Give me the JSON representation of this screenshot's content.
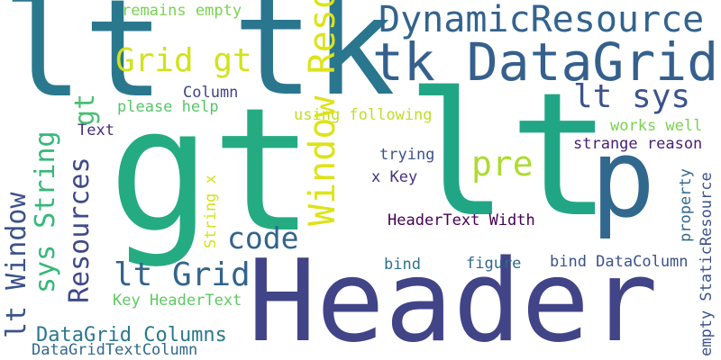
{
  "words": [
    {
      "text": "lt",
      "color": "#2a788e"
    },
    {
      "text": "tk",
      "color": "#2a768e"
    },
    {
      "text": "DynamicResource",
      "color": "#33638d"
    },
    {
      "text": "remains empty",
      "color": "#7ad151"
    },
    {
      "text": "tk DataGrid",
      "color": "#35608d"
    },
    {
      "text": "Grid gt",
      "color": "#d2e21b"
    },
    {
      "text": "lt sys",
      "color": "#3b528b"
    },
    {
      "text": "gt",
      "color": "#25ab82"
    },
    {
      "text": "lt",
      "color": "#21a685"
    },
    {
      "text": "p",
      "color": "#31688e"
    },
    {
      "text": "Header",
      "color": "#414487"
    },
    {
      "text": "Column",
      "color": "#414487"
    },
    {
      "text": "please help",
      "color": "#56c667"
    },
    {
      "text": "using following",
      "color": "#bddf26"
    },
    {
      "text": "works well",
      "color": "#7ad151"
    },
    {
      "text": "Text",
      "color": "#472d7b"
    },
    {
      "text": "strange reason",
      "color": "#482173"
    },
    {
      "text": "trying",
      "color": "#3b528b"
    },
    {
      "text": "pre",
      "color": "#addc30"
    },
    {
      "text": "x Key",
      "color": "#46327e"
    },
    {
      "text": "code",
      "color": "#33638d"
    },
    {
      "text": "Window Resources",
      "color": "#dde318"
    },
    {
      "text": "HeaderText Width",
      "color": "#440154"
    },
    {
      "text": "bind",
      "color": "#2c728e"
    },
    {
      "text": "figure",
      "color": "#31688e"
    },
    {
      "text": "bind DataColumn",
      "color": "#3b528b"
    },
    {
      "text": "lt Grid",
      "color": "#33638d"
    },
    {
      "text": "Key HeaderText",
      "color": "#5ec962"
    },
    {
      "text": "DataGrid Columns",
      "color": "#2a788e"
    },
    {
      "text": "DataGridTextColumn",
      "color": "#31688e"
    },
    {
      "text": "lt Window",
      "color": "#3b528b"
    },
    {
      "text": "sys String",
      "color": "#35b779"
    },
    {
      "text": "Resources",
      "color": "#3e4a89"
    },
    {
      "text": "gt",
      "color": "#46c06f"
    },
    {
      "text": "String x",
      "color": "#d2e21b"
    },
    {
      "text": "property",
      "color": "#31688e"
    },
    {
      "text": "empty StaticResource",
      "color": "#3b528b"
    }
  ]
}
